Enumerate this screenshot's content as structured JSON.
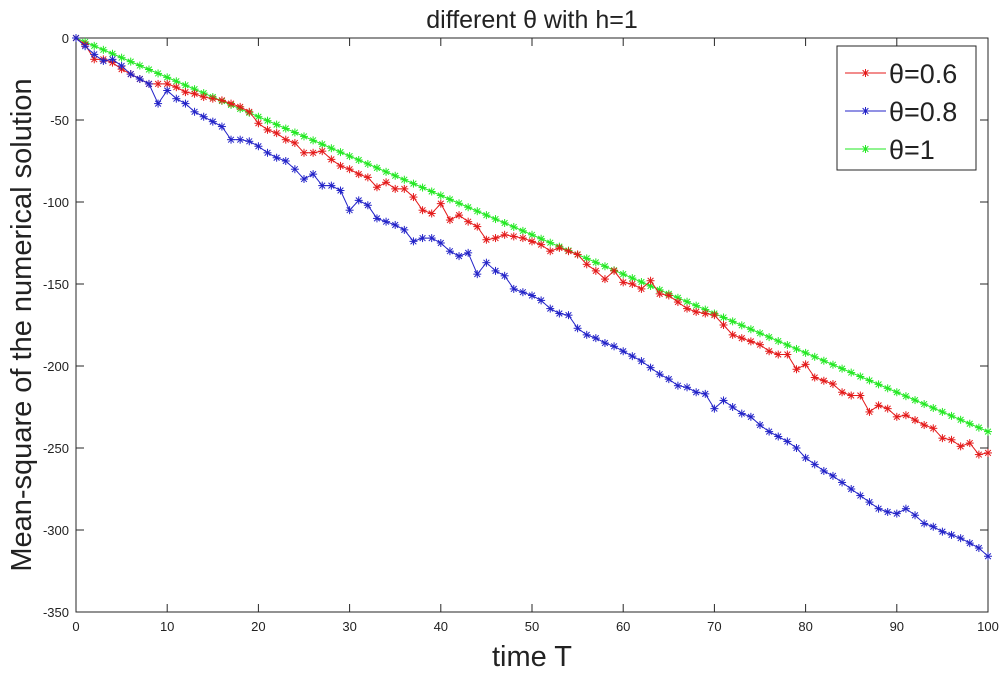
{
  "chart_data": {
    "type": "line",
    "title": "different θ with h=1",
    "xlabel": "time T",
    "ylabel": "Mean-square of the numerical solution",
    "xlim": [
      0,
      100
    ],
    "ylim": [
      -350,
      0
    ],
    "xticks": [
      "0",
      "10",
      "20",
      "30",
      "40",
      "50",
      "60",
      "70",
      "80",
      "90",
      "100"
    ],
    "yticks": [
      "0",
      "-50",
      "-100",
      "-150",
      "-200",
      "-250",
      "-300",
      "-350"
    ],
    "grid": false,
    "legend_position": "top-right",
    "marker": "asterisk",
    "x": [
      0,
      1,
      2,
      3,
      4,
      5,
      6,
      7,
      8,
      9,
      10,
      11,
      12,
      13,
      14,
      15,
      16,
      17,
      18,
      19,
      20,
      21,
      22,
      23,
      24,
      25,
      26,
      27,
      28,
      29,
      30,
      31,
      32,
      33,
      34,
      35,
      36,
      37,
      38,
      39,
      40,
      41,
      42,
      43,
      44,
      45,
      46,
      47,
      48,
      49,
      50,
      51,
      52,
      53,
      54,
      55,
      56,
      57,
      58,
      59,
      60,
      61,
      62,
      63,
      64,
      65,
      66,
      67,
      68,
      69,
      70,
      71,
      72,
      73,
      74,
      75,
      76,
      77,
      78,
      79,
      80,
      81,
      82,
      83,
      84,
      85,
      86,
      87,
      88,
      89,
      90,
      91,
      92,
      93,
      94,
      95,
      96,
      97,
      98,
      99,
      100
    ],
    "series": [
      {
        "name": "θ=0.6",
        "color": "#e41a1a",
        "values": [
          0,
          -4,
          -13,
          -13,
          -15,
          -19,
          -22,
          -25,
          -28,
          -28,
          -28,
          -30,
          -33,
          -34,
          -36,
          -37,
          -38,
          -40,
          -42,
          -45,
          -52,
          -56,
          -58,
          -62,
          -64,
          -70,
          -70,
          -69,
          -74,
          -78,
          -80,
          -83,
          -85,
          -91,
          -88,
          -92,
          -92,
          -97,
          -105,
          -107,
          -101,
          -111,
          -108,
          -112,
          -115,
          -123,
          -122,
          -120,
          -121,
          -122,
          -124,
          -126,
          -130,
          -128,
          -130,
          -132,
          -138,
          -142,
          -147,
          -142,
          -149,
          -150,
          -153,
          -148,
          -156,
          -157,
          -161,
          -165,
          -167,
          -168,
          -169,
          -175,
          -181,
          -183,
          -185,
          -187,
          -191,
          -193,
          -193,
          -202,
          -199,
          -207,
          -209,
          -211,
          -216,
          -218,
          -218,
          -228,
          -224,
          -226,
          -231,
          -230,
          -233,
          -236,
          -238,
          -244,
          -245,
          -249,
          -247,
          -254,
          -253
        ]
      },
      {
        "name": "θ=0.8",
        "color": "#2323c8",
        "values": [
          0,
          -5,
          -10,
          -14,
          -13,
          -17,
          -22,
          -25,
          -28,
          -40,
          -32,
          -37,
          -40,
          -45,
          -48,
          -51,
          -54,
          -62,
          -62,
          -63,
          -66,
          -70,
          -73,
          -75,
          -80,
          -86,
          -83,
          -90,
          -90,
          -93,
          -105,
          -99,
          -102,
          -110,
          -112,
          -114,
          -117,
          -124,
          -122,
          -122,
          -125,
          -130,
          -133,
          -131,
          -144,
          -137,
          -142,
          -145,
          -153,
          -155,
          -157,
          -160,
          -165,
          -168,
          -169,
          -177,
          -181,
          -183,
          -186,
          -188,
          -191,
          -194,
          -197,
          -201,
          -205,
          -208,
          -212,
          -213,
          -216,
          -217,
          -226,
          -221,
          -225,
          -229,
          -231,
          -236,
          -240,
          -243,
          -246,
          -250,
          -256,
          -260,
          -264,
          -267,
          -271,
          -275,
          -279,
          -283,
          -287,
          -289,
          -290,
          -287,
          -291,
          -296,
          -298,
          -301,
          -303,
          -305,
          -308,
          -311,
          -316
        ]
      },
      {
        "name": "θ=1",
        "color": "#22e822",
        "values": [
          0,
          -2.4,
          -4.8,
          -7.2,
          -9.6,
          -12,
          -14.4,
          -16.8,
          -19.2,
          -21.6,
          -24,
          -26.4,
          -28.8,
          -31.2,
          -33.6,
          -36,
          -38.4,
          -40.8,
          -43.2,
          -45.6,
          -48,
          -50.4,
          -52.8,
          -55.2,
          -57.6,
          -60,
          -62.4,
          -64.8,
          -67.2,
          -69.6,
          -72,
          -74.4,
          -76.8,
          -79.2,
          -81.6,
          -84,
          -86.4,
          -88.8,
          -91.2,
          -93.6,
          -96,
          -98.4,
          -100.8,
          -103.2,
          -105.6,
          -108,
          -110.4,
          -112.8,
          -115.2,
          -117.6,
          -120,
          -122.4,
          -124.8,
          -127.2,
          -129.6,
          -132,
          -134.4,
          -136.8,
          -139.2,
          -141.6,
          -144,
          -146.4,
          -148.8,
          -151.2,
          -153.6,
          -156,
          -158.4,
          -160.8,
          -163.2,
          -165.6,
          -168,
          -170.4,
          -172.8,
          -175.2,
          -177.6,
          -180,
          -182.4,
          -184.8,
          -187.2,
          -189.6,
          -192,
          -194.4,
          -196.8,
          -199.2,
          -201.6,
          -204,
          -206.4,
          -208.8,
          -211.2,
          -213.6,
          -216,
          -218.4,
          -220.8,
          -223.2,
          -225.6,
          -228,
          -230.4,
          -232.8,
          -235.2,
          -237.6,
          -240
        ]
      }
    ]
  }
}
